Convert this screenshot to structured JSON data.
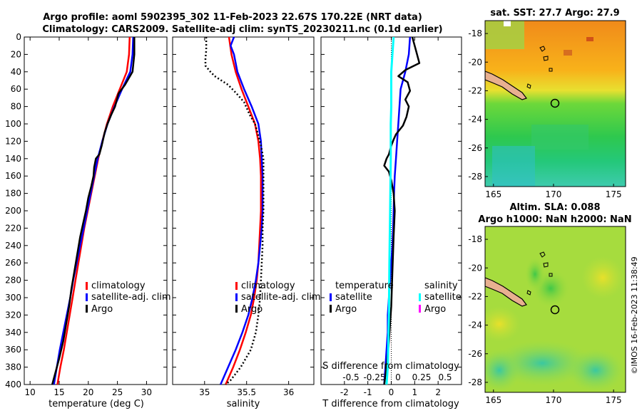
{
  "figure": {
    "title_line1": "Argo profile: aoml 5902395_302 11-Feb-2023 22.67S 170.22E (NRT data)",
    "title_line2": "Climatology: CARS2009. Satellite-adj clim: synTS_20230211.nc (0.1d earlier)",
    "copyright": "©IMOS 16-Feb-2023 11:38:49"
  },
  "colors": {
    "climatology": "#ff0000",
    "satellite": "#0000ff",
    "argo": "#000000",
    "sal_satellite": "#00ffff",
    "sal_argo": "#ff00ff"
  },
  "chart_data": [
    {
      "id": "temperature",
      "type": "line",
      "xlabel": "temperature (deg C)",
      "xlim": [
        9,
        33.5
      ],
      "ylim": [
        0,
        400
      ],
      "xticks": [
        10,
        15,
        20,
        25,
        30
      ],
      "xtick_labels": [
        "10",
        "15",
        "20",
        "25",
        "30"
      ],
      "yticks": [
        0,
        20,
        40,
        60,
        80,
        100,
        120,
        140,
        160,
        180,
        200,
        220,
        240,
        260,
        280,
        300,
        320,
        340,
        360,
        380,
        400
      ],
      "ytick_labels": [
        "0",
        "20",
        "40",
        "60",
        "80",
        "100",
        "120",
        "140",
        "160",
        "180",
        "200",
        "220",
        "240",
        "260",
        "280",
        "300",
        "320",
        "340",
        "360",
        "380",
        "400"
      ],
      "legend": [
        "climatology",
        "satellite-adj. clim",
        "Argo"
      ],
      "series": [
        {
          "name": "climatology",
          "color": "#ff0000",
          "points": [
            [
              27.1,
              0
            ],
            [
              27.0,
              20
            ],
            [
              26.6,
              40
            ],
            [
              25.4,
              60
            ],
            [
              24.2,
              80
            ],
            [
              23.2,
              100
            ],
            [
              22.4,
              120
            ],
            [
              21.7,
              140
            ],
            [
              21.1,
              160
            ],
            [
              20.5,
              180
            ],
            [
              19.9,
              200
            ],
            [
              19.3,
              220
            ],
            [
              18.8,
              240
            ],
            [
              18.3,
              260
            ],
            [
              17.8,
              280
            ],
            [
              17.3,
              300
            ],
            [
              16.8,
              320
            ],
            [
              16.3,
              340
            ],
            [
              15.8,
              360
            ],
            [
              15.2,
              380
            ],
            [
              14.7,
              400
            ]
          ]
        },
        {
          "name": "satellite-adj. clim",
          "color": "#0000ff",
          "points": [
            [
              27.7,
              0
            ],
            [
              27.6,
              20
            ],
            [
              27.2,
              40
            ],
            [
              25.8,
              60
            ],
            [
              24.5,
              80
            ],
            [
              23.3,
              100
            ],
            [
              22.4,
              120
            ],
            [
              21.6,
              140
            ],
            [
              21.0,
              160
            ],
            [
              20.4,
              180
            ],
            [
              19.8,
              200
            ],
            [
              19.2,
              220
            ],
            [
              18.6,
              240
            ],
            [
              18.0,
              260
            ],
            [
              17.4,
              280
            ],
            [
              16.9,
              300
            ],
            [
              16.3,
              320
            ],
            [
              15.7,
              340
            ],
            [
              15.1,
              360
            ],
            [
              14.6,
              380
            ],
            [
              14.1,
              400
            ]
          ]
        },
        {
          "name": "Argo",
          "color": "#000000",
          "points": [
            [
              27.9,
              0
            ],
            [
              27.9,
              20
            ],
            [
              27.6,
              40
            ],
            [
              26.3,
              55
            ],
            [
              25.2,
              65
            ],
            [
              24.6,
              80
            ],
            [
              23.9,
              90
            ],
            [
              23.3,
              100
            ],
            [
              22.8,
              110
            ],
            [
              22.3,
              125
            ],
            [
              21.9,
              135
            ],
            [
              21.3,
              140
            ],
            [
              21.0,
              150
            ],
            [
              20.9,
              160
            ],
            [
              20.5,
              172
            ],
            [
              20.0,
              185
            ],
            [
              19.6,
              200
            ],
            [
              19.1,
              215
            ],
            [
              18.6,
              230
            ],
            [
              18.1,
              250
            ],
            [
              17.6,
              270
            ],
            [
              17.1,
              290
            ],
            [
              16.7,
              310
            ],
            [
              16.2,
              330
            ],
            [
              15.7,
              350
            ],
            [
              15.0,
              370
            ],
            [
              14.4,
              385
            ],
            [
              13.8,
              400
            ]
          ]
        }
      ]
    },
    {
      "id": "salinity",
      "type": "line",
      "xlabel": "salinity",
      "xlim": [
        34.62,
        36.3
      ],
      "ylim": [
        0,
        400
      ],
      "xticks": [
        35,
        35.5,
        36
      ],
      "xtick_labels": [
        "35",
        "35.5",
        "36"
      ],
      "legend": [
        "climatology",
        "satellite-adj. clim",
        "Argo"
      ],
      "series": [
        {
          "name": "climatology",
          "color": "#ff0000",
          "dash": false,
          "points": [
            [
              35.29,
              0
            ],
            [
              35.32,
              20
            ],
            [
              35.37,
              40
            ],
            [
              35.44,
              60
            ],
            [
              35.52,
              80
            ],
            [
              35.6,
              100
            ],
            [
              35.64,
              120
            ],
            [
              35.66,
              140
            ],
            [
              35.67,
              160
            ],
            [
              35.67,
              180
            ],
            [
              35.67,
              200
            ],
            [
              35.66,
              220
            ],
            [
              35.65,
              240
            ],
            [
              35.64,
              260
            ],
            [
              35.62,
              280
            ],
            [
              35.59,
              300
            ],
            [
              35.55,
              320
            ],
            [
              35.49,
              340
            ],
            [
              35.42,
              360
            ],
            [
              35.34,
              380
            ],
            [
              35.25,
              400
            ]
          ]
        },
        {
          "name": "satellite-adj. clim",
          "color": "#0000ff",
          "dash": false,
          "points": [
            [
              35.35,
              0
            ],
            [
              35.31,
              10
            ],
            [
              35.35,
              20
            ],
            [
              35.39,
              40
            ],
            [
              35.47,
              60
            ],
            [
              35.56,
              80
            ],
            [
              35.64,
              100
            ],
            [
              35.67,
              120
            ],
            [
              35.68,
              140
            ],
            [
              35.69,
              160
            ],
            [
              35.69,
              180
            ],
            [
              35.69,
              200
            ],
            [
              35.68,
              220
            ],
            [
              35.66,
              240
            ],
            [
              35.64,
              260
            ],
            [
              35.61,
              280
            ],
            [
              35.57,
              300
            ],
            [
              35.52,
              320
            ],
            [
              35.45,
              340
            ],
            [
              35.37,
              360
            ],
            [
              35.28,
              380
            ],
            [
              35.19,
              400
            ]
          ]
        },
        {
          "name": "Argo",
          "color": "#000000",
          "dash": true,
          "points": [
            [
              35.02,
              0
            ],
            [
              35.02,
              15
            ],
            [
              35.01,
              25
            ],
            [
              35.01,
              33
            ],
            [
              35.07,
              40
            ],
            [
              35.12,
              45
            ],
            [
              35.28,
              55
            ],
            [
              35.38,
              65
            ],
            [
              35.47,
              75
            ],
            [
              35.54,
              90
            ],
            [
              35.6,
              100
            ],
            [
              35.63,
              110
            ],
            [
              35.67,
              125
            ],
            [
              35.7,
              140
            ],
            [
              35.7,
              160
            ],
            [
              35.7,
              180
            ],
            [
              35.7,
              200
            ],
            [
              35.69,
              220
            ],
            [
              35.69,
              240
            ],
            [
              35.68,
              260
            ],
            [
              35.67,
              280
            ],
            [
              35.66,
              300
            ],
            [
              35.64,
              320
            ],
            [
              35.61,
              340
            ],
            [
              35.55,
              360
            ],
            [
              35.43,
              380
            ],
            [
              35.31,
              395
            ],
            [
              35.25,
              400
            ]
          ]
        }
      ]
    },
    {
      "id": "difference",
      "type": "line",
      "xlabel": "T difference from climatology",
      "top_label": "S difference from climatology",
      "xlim": [
        -3,
        3
      ],
      "ylim": [
        0,
        400
      ],
      "xticks": [
        -2,
        -1,
        0,
        1,
        2
      ],
      "xtick_labels": [
        "-2",
        "-1",
        "0",
        "1",
        "2"
      ],
      "sticks_labels": [
        "-0.5",
        "-0.25",
        "0",
        "0.25",
        "0.5"
      ],
      "legend_temperature": [
        "temperature",
        "satellite",
        "Argo"
      ],
      "legend_salinity": [
        "salinity",
        "satellite",
        "Argo"
      ],
      "series": [
        {
          "name": "temperature satellite",
          "color": "#0000ff",
          "points": [
            [
              0.8,
              0
            ],
            [
              0.75,
              20
            ],
            [
              0.6,
              40
            ],
            [
              0.4,
              60
            ],
            [
              0.35,
              80
            ],
            [
              0.3,
              100
            ],
            [
              0.25,
              120
            ],
            [
              0.2,
              140
            ],
            [
              0.15,
              160
            ],
            [
              0.12,
              180
            ],
            [
              0.1,
              200
            ],
            [
              0.08,
              220
            ],
            [
              0.05,
              240
            ],
            [
              0.0,
              260
            ],
            [
              -0.05,
              280
            ],
            [
              -0.1,
              300
            ],
            [
              -0.15,
              320
            ],
            [
              -0.15,
              340
            ],
            [
              -0.2,
              360
            ],
            [
              -0.25,
              380
            ],
            [
              -0.3,
              400
            ]
          ]
        },
        {
          "name": "temperature Argo",
          "color": "#000000",
          "points": [
            [
              0.9,
              0
            ],
            [
              1.05,
              15
            ],
            [
              1.2,
              30
            ],
            [
              0.6,
              38
            ],
            [
              0.3,
              45
            ],
            [
              0.7,
              52
            ],
            [
              0.8,
              62
            ],
            [
              0.6,
              72
            ],
            [
              0.75,
              80
            ],
            [
              0.65,
              92
            ],
            [
              0.5,
              102
            ],
            [
              0.2,
              112
            ],
            [
              0.1,
              118
            ],
            [
              0.0,
              125
            ],
            [
              -0.1,
              135
            ],
            [
              -0.2,
              140
            ],
            [
              -0.3,
              148
            ],
            [
              -0.1,
              155
            ],
            [
              0.0,
              165
            ],
            [
              0.1,
              180
            ],
            [
              0.15,
              200
            ],
            [
              0.1,
              230
            ],
            [
              0.05,
              270
            ],
            [
              0.0,
              310
            ],
            [
              -0.1,
              350
            ],
            [
              -0.2,
              380
            ],
            [
              -0.3,
              400
            ]
          ]
        },
        {
          "name": "salinity satellite",
          "color": "#00ffff",
          "points": [
            [
              0.1,
              0
            ],
            [
              0.05,
              20
            ],
            [
              0.0,
              40
            ],
            [
              0.0,
              60
            ],
            [
              0.0,
              80
            ],
            [
              -0.02,
              100
            ],
            [
              -0.02,
              140
            ],
            [
              -0.05,
              200
            ],
            [
              -0.08,
              260
            ],
            [
              -0.1,
              320
            ],
            [
              -0.15,
              380
            ],
            [
              -0.2,
              400
            ]
          ]
        }
      ]
    },
    {
      "id": "sst-map",
      "type": "heatmap",
      "title": "sat. SST: 27.7 Argo: 27.9",
      "xlim": [
        164.3,
        176.0
      ],
      "ylim": [
        -28.7,
        -17.1
      ],
      "xticks": [
        165,
        170,
        175
      ],
      "xtick_labels": [
        "165",
        "170",
        "175"
      ],
      "yticks": [
        -18,
        -20,
        -22,
        -24,
        -26,
        -28
      ],
      "ytick_labels": [
        "-18",
        "-20",
        "-22",
        "-24",
        "-26",
        "-28"
      ],
      "marker": [
        170.22,
        -22.67
      ]
    },
    {
      "id": "sla-map",
      "type": "heatmap",
      "title_line1": "Altim. SLA: 0.088",
      "title_line2": "Argo h1000: NaN h2000: NaN",
      "xlim": [
        164.3,
        176.0
      ],
      "ylim": [
        -28.7,
        -17.1
      ],
      "xticks": [
        165,
        170,
        175
      ],
      "xtick_labels": [
        "165",
        "170",
        "175"
      ],
      "yticks": [
        -18,
        -20,
        -22,
        -24,
        -26,
        -28
      ],
      "ytick_labels": [
        "-18",
        "-20",
        "-22",
        "-24",
        "-26",
        "-28"
      ],
      "marker": [
        170.22,
        -22.67
      ]
    }
  ]
}
